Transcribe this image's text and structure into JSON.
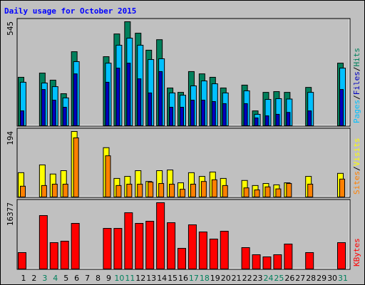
{
  "title": "Daily usage for October 2015",
  "chart_data": [
    {
      "type": "bar",
      "ylim": [
        0,
        545
      ],
      "yticks": [
        545
      ],
      "legend_separator": "/",
      "series": [
        {
          "name": "Pages",
          "color": "#00c0ff",
          "values": [
            228,
            0,
            224,
            205,
            146,
            336,
            0,
            0,
            328,
            422,
            459,
            422,
            347,
            351,
            172,
            160,
            209,
            235,
            220,
            172,
            0,
            183,
            60,
            138,
            142,
            140,
            0,
            175,
            0,
            0,
            302
          ]
        },
        {
          "name": "Files",
          "color": "#0000c0",
          "values": [
            78,
            0,
            190,
            134,
            97,
            272,
            0,
            0,
            228,
            302,
            328,
            246,
            172,
            284,
            97,
            97,
            134,
            134,
            127,
            116,
            0,
            116,
            41,
            52,
            60,
            70,
            0,
            78,
            0,
            0,
            190
          ]
        },
        {
          "name": "Hits",
          "color": "#00805c",
          "values": [
            254,
            0,
            276,
            239,
            168,
            388,
            0,
            0,
            362,
            481,
            545,
            485,
            396,
            451,
            198,
            175,
            284,
            272,
            254,
            198,
            0,
            213,
            78,
            175,
            179,
            175,
            0,
            201,
            0,
            0,
            328
          ]
        }
      ]
    },
    {
      "type": "bar",
      "ylim": [
        0,
        194
      ],
      "yticks": [
        194
      ],
      "legend_separator": "/",
      "series": [
        {
          "name": "Sites",
          "color": "#ff8000",
          "values": [
            32,
            0,
            34,
            38,
            38,
            175,
            0,
            0,
            122,
            34,
            38,
            38,
            44,
            40,
            38,
            23,
            38,
            46,
            51,
            34,
            0,
            27,
            21,
            30,
            24,
            40,
            0,
            38,
            0,
            0,
            53
          ]
        },
        {
          "name": "Visits",
          "color": "#ffff00",
          "values": [
            72,
            0,
            95,
            68,
            78,
            194,
            0,
            0,
            146,
            55,
            61,
            78,
            46,
            78,
            80,
            42,
            72,
            61,
            74,
            55,
            0,
            49,
            34,
            40,
            36,
            42,
            0,
            61,
            0,
            0,
            70
          ]
        }
      ]
    },
    {
      "type": "bar",
      "ylim": [
        0,
        16377
      ],
      "yticks": [
        16377
      ],
      "categories": [
        "1",
        "2",
        "3",
        "4",
        "5",
        "6",
        "7",
        "8",
        "9",
        "10",
        "11",
        "12",
        "13",
        "14",
        "15",
        "16",
        "17",
        "18",
        "19",
        "20",
        "21",
        "22",
        "23",
        "24",
        "25",
        "26",
        "27",
        "28",
        "29",
        "30",
        "31"
      ],
      "category_colors": [
        "#000000",
        "#000000",
        "#00805c",
        "#00805c",
        "#000000",
        "#000000",
        "#000000",
        "#000000",
        "#000000",
        "#00805c",
        "#00805c",
        "#000000",
        "#000000",
        "#000000",
        "#000000",
        "#000000",
        "#00805c",
        "#00805c",
        "#000000",
        "#000000",
        "#000000",
        "#000000",
        "#000000",
        "#00805c",
        "#00805c",
        "#000000",
        "#000000",
        "#000000",
        "#000000",
        "#000000",
        "#00805c"
      ],
      "series": [
        {
          "name": "KBytes",
          "color": "#ff0000",
          "values": [
            4050,
            0,
            13200,
            6510,
            6870,
            11270,
            0,
            0,
            10030,
            10030,
            13900,
            11270,
            11800,
            16377,
            11440,
            5100,
            10910,
            9150,
            7390,
            9330,
            0,
            5280,
            3520,
            2990,
            3520,
            6160,
            0,
            4050,
            0,
            0,
            6510
          ]
        }
      ]
    }
  ]
}
